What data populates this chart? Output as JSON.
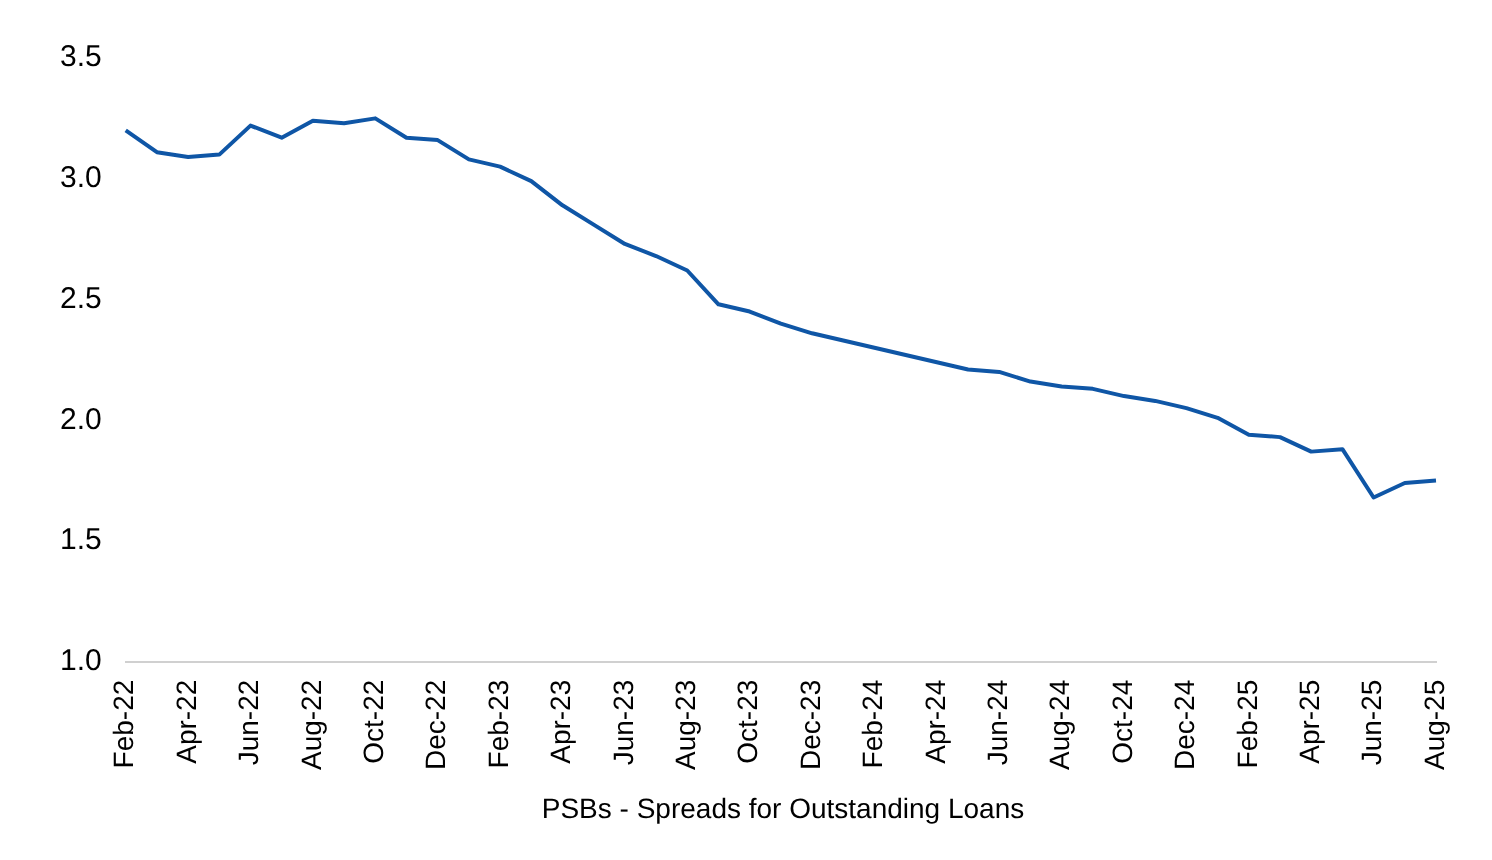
{
  "chart_data": {
    "type": "line",
    "categories": [
      "Feb-22",
      null,
      "Apr-22",
      null,
      "Jun-22",
      null,
      "Aug-22",
      null,
      "Oct-22",
      null,
      "Dec-22",
      null,
      "Feb-23",
      null,
      "Apr-23",
      null,
      "Jun-23",
      null,
      "Aug-23",
      null,
      "Oct-23",
      null,
      "Dec-23",
      null,
      "Feb-24",
      null,
      "Apr-24",
      null,
      "Jun-24",
      null,
      "Aug-24",
      null,
      "Oct-24",
      null,
      "Dec-24",
      null,
      "Feb-25",
      null,
      "Apr-25",
      null,
      "Jun-25",
      null,
      "Aug-25"
    ],
    "series": [
      {
        "name": "PSBs - Spreads for Outstanding Loans",
        "color": "#0f56a6",
        "values": [
          3.2,
          3.11,
          3.09,
          3.1,
          3.22,
          3.17,
          3.24,
          3.23,
          3.25,
          3.17,
          3.16,
          3.08,
          3.05,
          2.99,
          2.89,
          2.81,
          2.73,
          2.68,
          2.62,
          2.48,
          2.45,
          2.4,
          2.36,
          2.33,
          2.3,
          2.27,
          2.24,
          2.21,
          2.2,
          2.16,
          2.14,
          2.13,
          2.1,
          2.08,
          2.05,
          2.01,
          1.94,
          1.93,
          1.87,
          1.88,
          1.68,
          1.74,
          1.75
        ]
      }
    ],
    "ylim": [
      1.0,
      3.5
    ],
    "yticks": [
      {
        "value": 1.0,
        "label": "1.0"
      },
      {
        "value": 1.5,
        "label": "1.5"
      },
      {
        "value": 2.0,
        "label": "2.0"
      },
      {
        "value": 2.5,
        "label": "2.5"
      },
      {
        "value": 3.0,
        "label": "3.0"
      },
      {
        "value": 3.5,
        "label": "3.5"
      }
    ],
    "grid": false,
    "legend": "bottom",
    "marker": "none",
    "line_style": "solid"
  }
}
